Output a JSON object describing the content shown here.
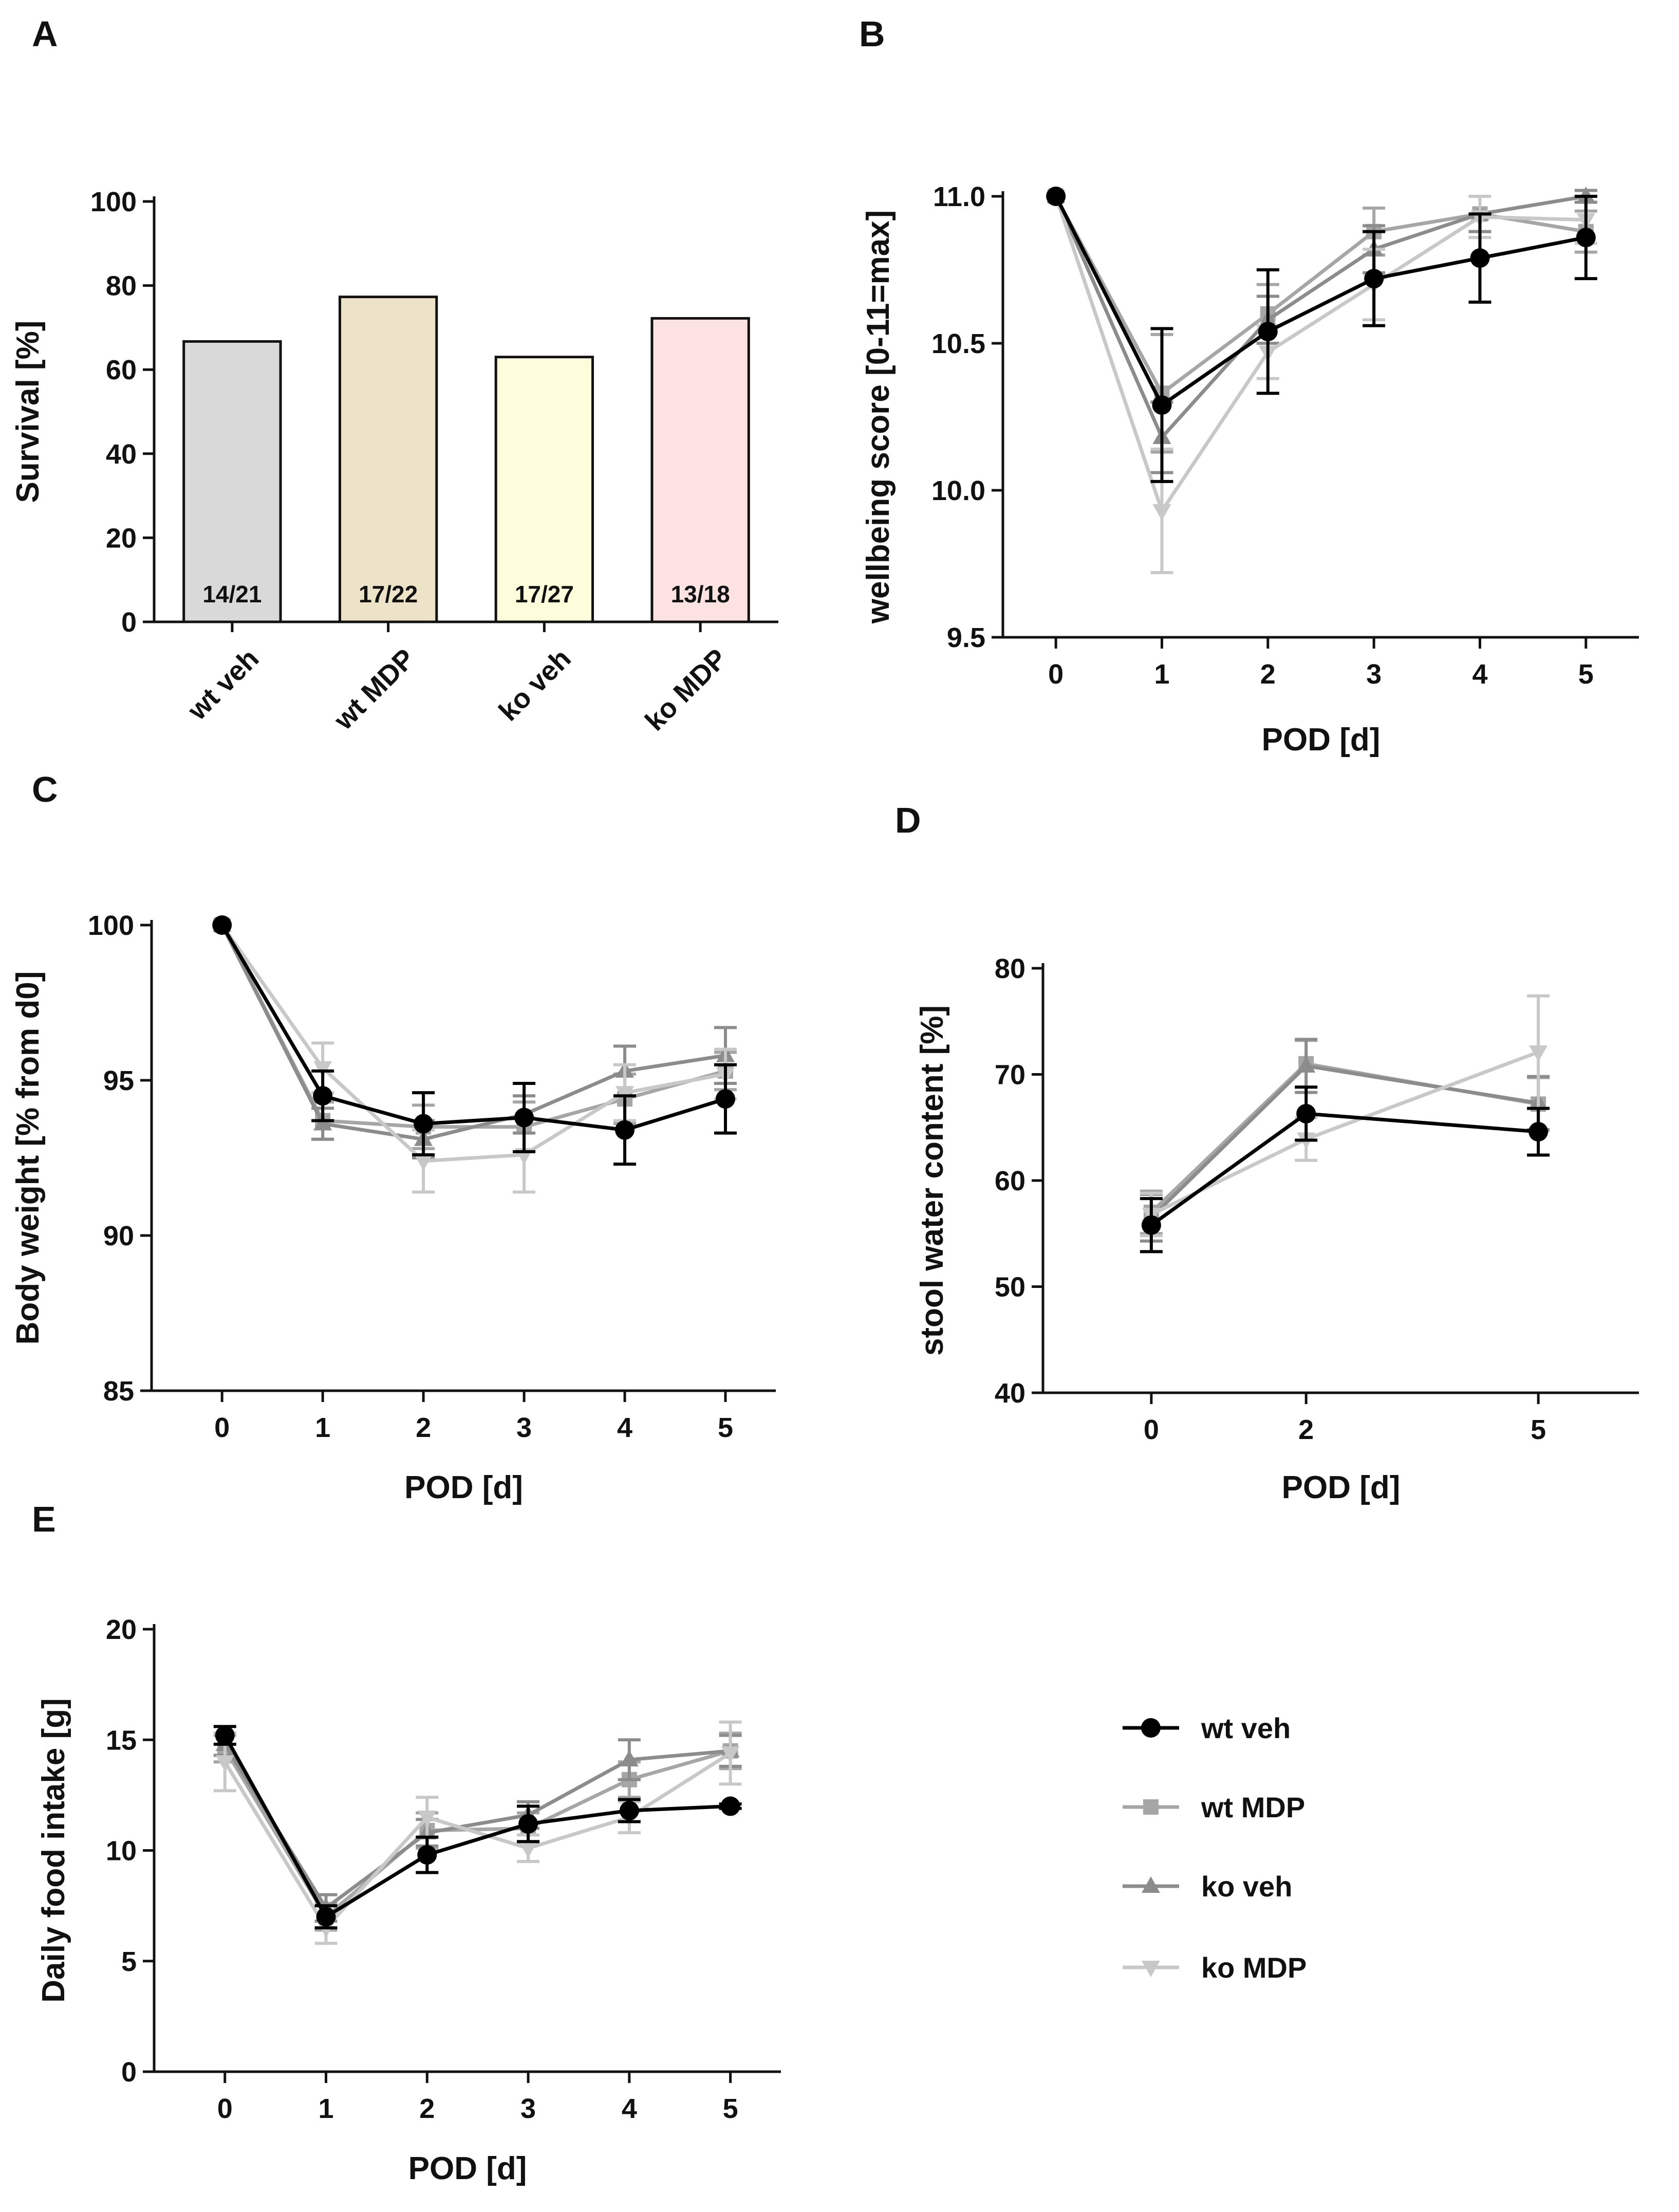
{
  "colors": {
    "wt_veh": "#000000",
    "wt_MDP": "#a6a6a6",
    "ko_veh": "#8c8c8c",
    "ko_MDP": "#c8c8c8",
    "bar_fills": [
      "#d9d9d9",
      "#ede3c8",
      "#fdfddc",
      "#fde2e2"
    ]
  },
  "legend": {
    "items": [
      {
        "label": "wt  veh",
        "marker": "circle",
        "color": "#000000"
      },
      {
        "label": "wt MDP",
        "marker": "square",
        "color": "#a6a6a6"
      },
      {
        "label": "ko veh",
        "marker": "triangle",
        "color": "#8c8c8c"
      },
      {
        "label": "ko MDP",
        "marker": "triangle-down",
        "color": "#c8c8c8"
      }
    ]
  },
  "chart_data": [
    {
      "panel": "A",
      "type": "bar",
      "ylabel": "Survival [%]",
      "ylim": [
        0,
        100
      ],
      "yticks": [
        0,
        20,
        40,
        60,
        80,
        100
      ],
      "categories": [
        "wt veh",
        "wt MDP",
        "ko veh",
        "ko MDP"
      ],
      "values": [
        66.7,
        77.3,
        63.0,
        72.2
      ],
      "bar_labels": [
        "14/21",
        "17/22",
        "17/27",
        "13/18"
      ]
    },
    {
      "panel": "B",
      "type": "line",
      "xlabel": "POD [d]",
      "ylabel": "wellbeing score [0-11=max]",
      "x": [
        0,
        1,
        2,
        3,
        4,
        5
      ],
      "xticks": [
        0,
        1,
        2,
        3,
        4,
        5
      ],
      "xlim": [
        -0.5,
        5.5
      ],
      "ylim": [
        9.5,
        11.0
      ],
      "yticks": [
        9.5,
        10.0,
        10.5,
        11.0
      ],
      "ytick_labels": [
        "9.5",
        "10.0",
        "10.5",
        "11.0"
      ],
      "series": [
        {
          "name": "wt MDP",
          "values": [
            11.0,
            10.33,
            10.6,
            10.88,
            10.94,
            10.88
          ],
          "errors": [
            0,
            0.2,
            0.1,
            0.08,
            0.06,
            0.07
          ]
        },
        {
          "name": "ko veh",
          "values": [
            11.0,
            10.18,
            10.58,
            10.82,
            10.94,
            11.0
          ],
          "errors": [
            0,
            0.12,
            0.08,
            0.08,
            0.06,
            0.02
          ]
        },
        {
          "name": "ko MDP",
          "values": [
            11.0,
            9.93,
            10.47,
            10.7,
            10.93,
            10.92
          ],
          "errors": [
            0,
            0.21,
            0.09,
            0.12,
            0.07,
            0.08
          ]
        },
        {
          "name": "wt  veh",
          "values": [
            11.0,
            10.29,
            10.54,
            10.72,
            10.79,
            10.86
          ],
          "errors": [
            0,
            0.26,
            0.21,
            0.16,
            0.15,
            0.14
          ]
        }
      ]
    },
    {
      "panel": "C",
      "type": "line",
      "xlabel": "POD [d]",
      "ylabel": "Body weight [% from d0]",
      "x": [
        0,
        1,
        2,
        3,
        4,
        5
      ],
      "xticks": [
        0,
        1,
        2,
        3,
        4,
        5
      ],
      "xlim": [
        -0.7,
        5.5
      ],
      "ylim": [
        85,
        100
      ],
      "yticks": [
        85,
        90,
        95,
        100
      ],
      "ytick_labels": [
        "85",
        "90",
        "95",
        "100"
      ],
      "series": [
        {
          "name": "wt MDP",
          "values": [
            100,
            93.7,
            93.5,
            93.5,
            94.4,
            95.3
          ],
          "errors": [
            0,
            0.6,
            0.7,
            0.8,
            0.8,
            0.6
          ]
        },
        {
          "name": "ko veh",
          "values": [
            100,
            93.6,
            93.1,
            93.9,
            95.3,
            95.8
          ],
          "errors": [
            0,
            0.5,
            0.6,
            0.6,
            0.8,
            0.9
          ]
        },
        {
          "name": "ko MDP",
          "values": [
            100,
            95.4,
            92.4,
            92.6,
            94.6,
            95.2
          ],
          "errors": [
            0,
            0.8,
            1.0,
            1.2,
            0.9,
            0.8
          ]
        },
        {
          "name": "wt  veh",
          "values": [
            100,
            94.5,
            93.6,
            93.8,
            93.4,
            94.4
          ],
          "errors": [
            0,
            0.8,
            1.0,
            1.1,
            1.1,
            1.1
          ]
        }
      ]
    },
    {
      "panel": "D",
      "type": "line",
      "xlabel": "POD [d]",
      "ylabel": "stool water content [%]",
      "x": [
        0,
        2,
        5
      ],
      "xticks": [
        0,
        2,
        5
      ],
      "xlim": [
        -1.4,
        6.3
      ],
      "ylim": [
        40,
        80
      ],
      "yticks": [
        40,
        50,
        60,
        70,
        80
      ],
      "ytick_labels": [
        "40",
        "50",
        "60",
        "70",
        "80"
      ],
      "series": [
        {
          "name": "wt MDP",
          "values": [
            57.0,
            71.0,
            67.2
          ],
          "errors": [
            2.0,
            2.2,
            2.5
          ]
        },
        {
          "name": "ko veh",
          "values": [
            56.5,
            70.8,
            67.3
          ],
          "errors": [
            2.2,
            2.5,
            2.5
          ]
        },
        {
          "name": "ko MDP",
          "values": [
            56.8,
            63.9,
            72.1
          ],
          "errors": [
            2.0,
            2.0,
            5.3
          ]
        },
        {
          "name": "wt  veh",
          "values": [
            55.8,
            66.3,
            64.6
          ],
          "errors": [
            2.5,
            2.5,
            2.2
          ]
        }
      ]
    },
    {
      "panel": "E",
      "type": "line",
      "xlabel": "POD [d]",
      "ylabel": "Daily food intake [g]",
      "x": [
        0,
        1,
        2,
        3,
        4,
        5
      ],
      "xticks": [
        0,
        1,
        2,
        3,
        4,
        5
      ],
      "xlim": [
        -0.7,
        5.5
      ],
      "ylim": [
        0,
        20
      ],
      "yticks": [
        0,
        5,
        10,
        15,
        20
      ],
      "ytick_labels": [
        "0",
        "5",
        "10",
        "15",
        "20"
      ],
      "series": [
        {
          "name": "wt MDP",
          "values": [
            14.6,
            7.0,
            10.9,
            11.0,
            13.2,
            14.5
          ],
          "errors": [
            0.6,
            0.6,
            0.8,
            0.7,
            0.8,
            0.8
          ]
        },
        {
          "name": "ko veh",
          "values": [
            14.8,
            7.4,
            10.8,
            11.6,
            14.1,
            14.5
          ],
          "errors": [
            0.5,
            0.6,
            0.6,
            0.6,
            0.9,
            0.7
          ]
        },
        {
          "name": "ko MDP",
          "values": [
            14.0,
            6.5,
            11.5,
            10.1,
            11.5,
            14.4
          ],
          "errors": [
            1.3,
            0.7,
            0.9,
            0.6,
            0.7,
            1.4
          ]
        },
        {
          "name": "wt  veh",
          "values": [
            15.2,
            7.0,
            9.8,
            11.2,
            11.8,
            12.0
          ],
          "errors": [
            0.4,
            0.5,
            0.8,
            0.8,
            0.5,
            0.1
          ]
        }
      ]
    }
  ]
}
